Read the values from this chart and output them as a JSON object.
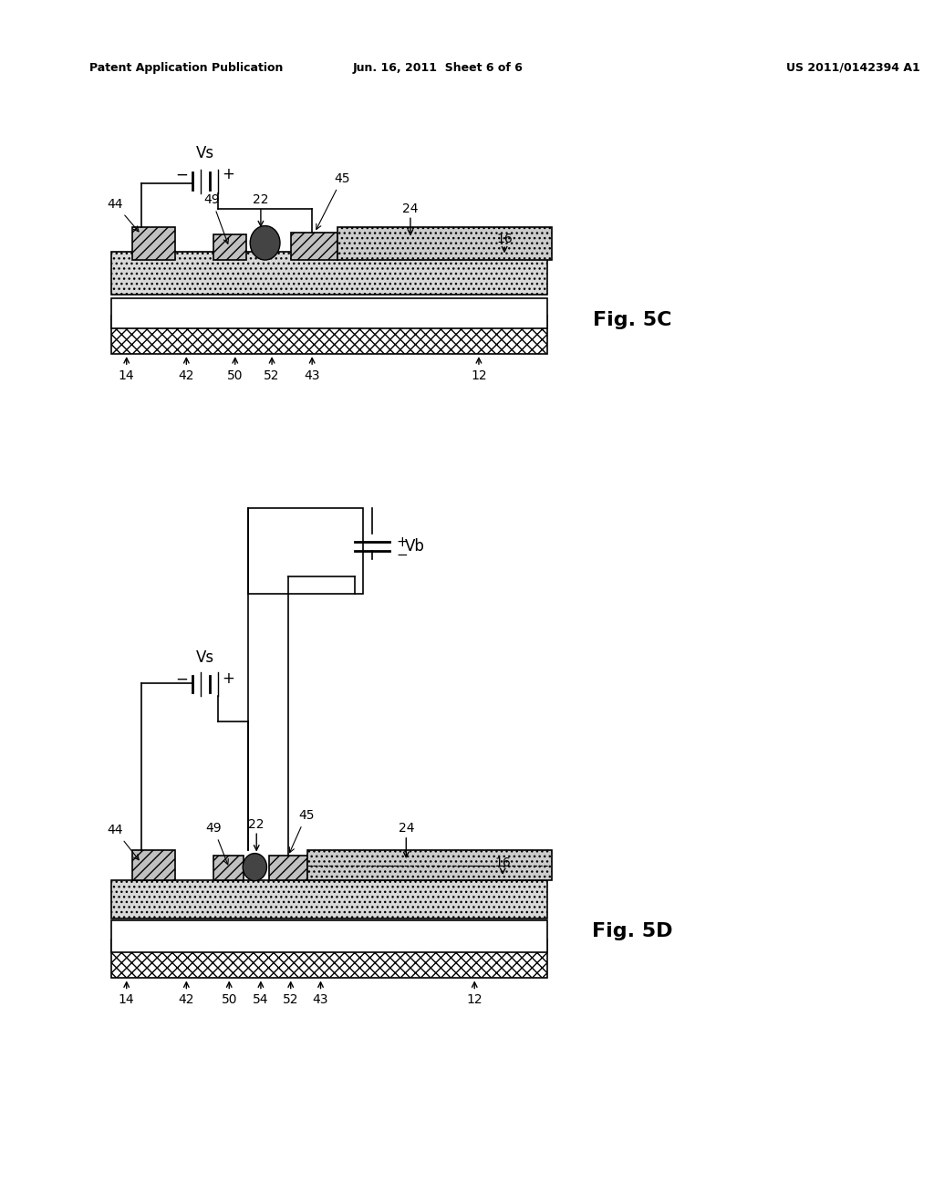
{
  "bg_color": "#ffffff",
  "header_left": "Patent Application Publication",
  "header_center": "Jun. 16, 2011  Sheet 6 of 6",
  "header_right": "US 2011/0142394 A1",
  "fig5c_label": "Fig. 5C",
  "fig5d_label": "Fig. 5D",
  "hatch_diag": "///",
  "hatch_cross": "xxx",
  "hatch_dot": "...",
  "colors": {
    "diag_hatch_fill": "#c8c8c8",
    "cross_hatch_fill": "#888888",
    "dot_fill": "#d0d0d0",
    "outline": "#000000",
    "white": "#ffffff",
    "light_gray": "#e0e0e0",
    "medium_gray": "#aaaaaa",
    "dark": "#000000",
    "blob": "#555555"
  }
}
